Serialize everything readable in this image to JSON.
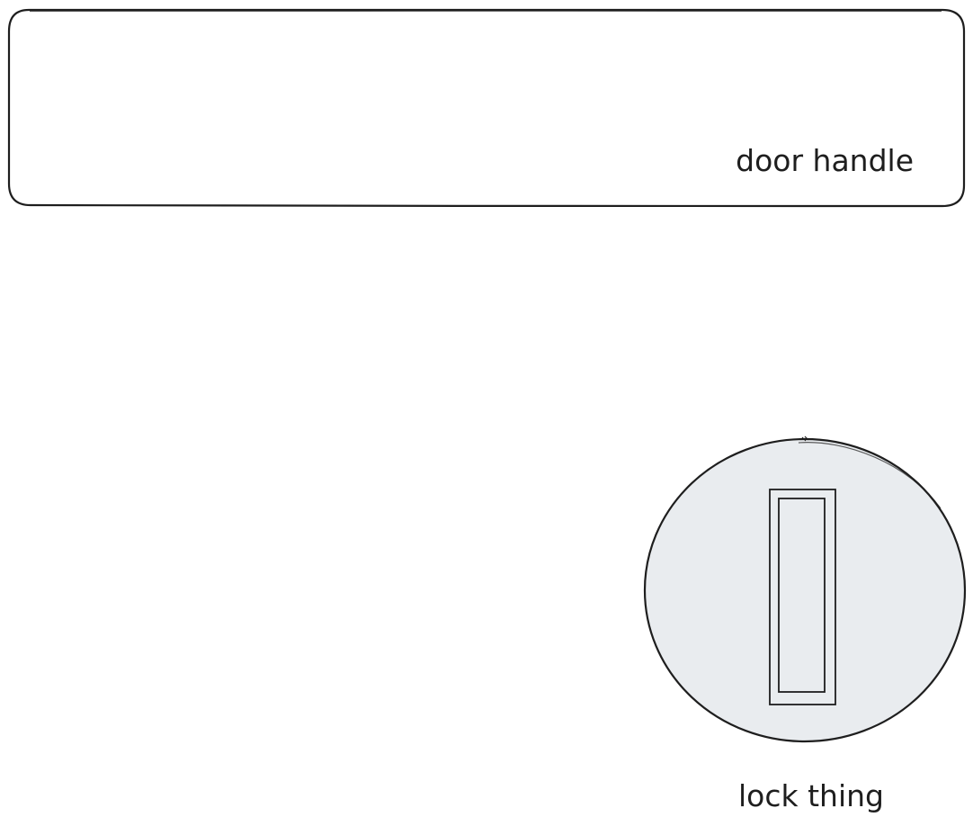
{
  "diagram": {
    "handle": {
      "label": "door handle"
    },
    "lock": {
      "label": "lock thing",
      "fill": "#e9ecef"
    },
    "stroke_color": "#1e1e1e"
  }
}
